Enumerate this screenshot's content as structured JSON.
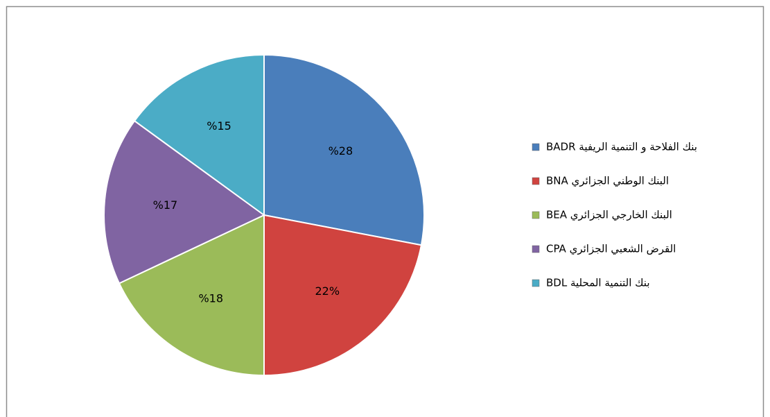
{
  "chart_data": {
    "type": "pie",
    "categories": [
      "بنك الفلاحة و التنمية الريفية BADR",
      "البنك الوطني الجزائري BNA",
      "البنك الخارجي الجزائري BEA",
      "القرض الشعبي الجزائري CPA",
      "بنك التنمية المحلية BDL"
    ],
    "values": [
      28,
      22,
      18,
      17,
      15
    ],
    "value_labels": [
      "%28",
      "22%",
      "%18",
      "%17",
      "%15"
    ],
    "colors": [
      "#4a7ebb",
      "#d0433f",
      "#9bbb59",
      "#8064a2",
      "#4bacc6"
    ],
    "legend": "right"
  }
}
